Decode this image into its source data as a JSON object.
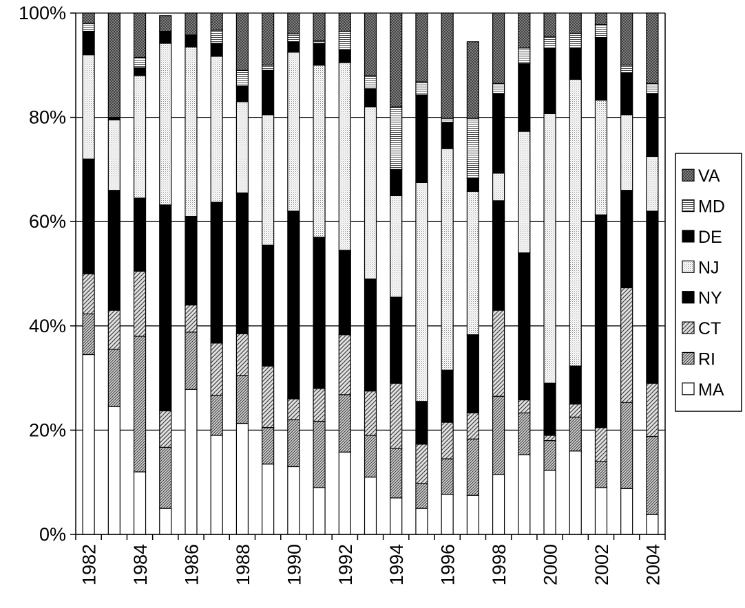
{
  "chart_data": {
    "type": "bar",
    "stacked": true,
    "percent_stacked": true,
    "title": "",
    "xlabel": "",
    "ylabel": "",
    "ylim": [
      0,
      100
    ],
    "y_ticks": [
      "0%",
      "20%",
      "40%",
      "60%",
      "80%",
      "100%"
    ],
    "x_tick_labels": [
      "1982",
      "1984",
      "1986",
      "1988",
      "1990",
      "1992",
      "1994",
      "1996",
      "1998",
      "2000",
      "2002",
      "2004"
    ],
    "grid": true,
    "legend_position": "right",
    "categories": [
      "1982",
      "1983",
      "1984",
      "1985",
      "1986",
      "1987",
      "1988",
      "1989",
      "1990",
      "1991",
      "1992",
      "1993",
      "1994",
      "1995",
      "1996",
      "1997",
      "1998",
      "1999",
      "2000",
      "2001",
      "2002",
      "2003",
      "2004"
    ],
    "series": [
      {
        "name": "MA",
        "pattern": "white",
        "values": [
          34.5,
          24.5,
          12,
          5,
          27.8,
          19,
          21.3,
          13.5,
          13,
          9,
          15.8,
          11,
          7,
          5,
          7.7,
          7.5,
          11.5,
          15.3,
          12.3,
          16,
          9,
          8.8,
          3.8
        ]
      },
      {
        "name": "RI",
        "pattern": "diag-fine",
        "values": [
          7.8,
          11,
          26,
          11.7,
          11,
          7.7,
          9.2,
          7,
          9,
          12.7,
          11,
          8,
          9.5,
          4.8,
          6.8,
          10.8,
          15,
          8,
          5.7,
          6.5,
          5,
          16.5,
          15
        ]
      },
      {
        "name": "CT",
        "pattern": "diag-coarse",
        "values": [
          7.7,
          7.5,
          12.5,
          7,
          5.2,
          10,
          8,
          11.8,
          4,
          6.3,
          11.5,
          8.5,
          12.5,
          7.5,
          7,
          5,
          16.5,
          2.5,
          1,
          2.5,
          6.5,
          22,
          10.2
        ]
      },
      {
        "name": "NY",
        "pattern": "black",
        "values": [
          22,
          23,
          14,
          39.5,
          17,
          27,
          27,
          23.2,
          36,
          29,
          16.2,
          21.5,
          16.5,
          8.2,
          10,
          15,
          21,
          28.2,
          10,
          7.3,
          40.8,
          18.7,
          33
        ]
      },
      {
        "name": "NJ",
        "pattern": "dots",
        "values": [
          20,
          13.5,
          23.5,
          31,
          32.5,
          28,
          17.5,
          25,
          30.5,
          33,
          36,
          33,
          19.5,
          42,
          42.5,
          27.5,
          5.3,
          23.3,
          51.7,
          55,
          22,
          14.5,
          10.5
        ]
      },
      {
        "name": "DE",
        "pattern": "black",
        "values": [
          4.5,
          0.5,
          1.5,
          2.3,
          2.3,
          2.5,
          3,
          8.5,
          2,
          4.2,
          2.5,
          3.5,
          5,
          16.8,
          5,
          2.5,
          15.2,
          13,
          12.5,
          6,
          12,
          8,
          12
        ]
      },
      {
        "name": "MD",
        "pattern": "hlines",
        "values": [
          1.5,
          0,
          2,
          0,
          0,
          2.5,
          3,
          1,
          1.5,
          0.5,
          3.5,
          2.5,
          12,
          2.5,
          0.8,
          11.5,
          2,
          3,
          2.3,
          2.8,
          2.5,
          1.5,
          2
        ]
      },
      {
        "name": "VA",
        "pattern": "crosshatch",
        "values": [
          2,
          20,
          8.5,
          3,
          4.2,
          3.3,
          11,
          10,
          4,
          5.3,
          3.5,
          12,
          18,
          13.2,
          20.2,
          14.7,
          13.5,
          6.7,
          4.5,
          3.9,
          2.2,
          10,
          13.5
        ]
      }
    ]
  }
}
